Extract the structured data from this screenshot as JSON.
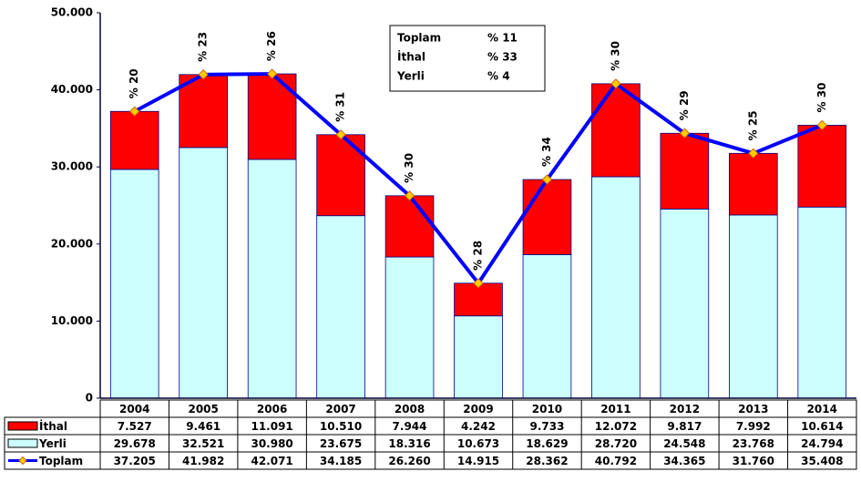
{
  "chart_data": {
    "type": "bar",
    "stacked": true,
    "categories": [
      "2004",
      "2005",
      "2006",
      "2007",
      "2008",
      "2009",
      "2010",
      "2011",
      "2012",
      "2013",
      "2014"
    ],
    "series": [
      {
        "name": "İthal",
        "color": "#ff0000",
        "type": "bar",
        "values": [
          7527,
          9461,
          11091,
          10510,
          7944,
          4242,
          9733,
          12072,
          9817,
          7992,
          10614
        ],
        "value_labels": [
          "7.527",
          "9.461",
          "11.091",
          "10.510",
          "7.944",
          "4.242",
          "9.733",
          "12.072",
          "9.817",
          "7.992",
          "10.614"
        ]
      },
      {
        "name": "Yerli",
        "color": "#ccffff",
        "type": "bar",
        "values": [
          29678,
          32521,
          30980,
          23675,
          18316,
          10673,
          18629,
          28720,
          24548,
          23768,
          24794
        ],
        "value_labels": [
          "29.678",
          "32.521",
          "30.980",
          "23.675",
          "18.316",
          "10.673",
          "18.629",
          "28.720",
          "24.548",
          "23.768",
          "24.794"
        ]
      },
      {
        "name": "Toplam",
        "color": "#0000ff",
        "marker_color": "#ffcc00",
        "type": "line",
        "values": [
          37205,
          41982,
          42071,
          34185,
          26260,
          14915,
          28362,
          40792,
          34365,
          31760,
          35408
        ],
        "value_labels": [
          "37.205",
          "41.982",
          "42.071",
          "34.185",
          "26.260",
          "14.915",
          "28.362",
          "40.792",
          "34.365",
          "31.760",
          "35.408"
        ]
      }
    ],
    "annotations": [
      "% 20",
      "% 23",
      "% 26",
      "% 31",
      "% 30",
      "% 28",
      "% 34",
      "% 30",
      "% 29",
      "% 25",
      "% 30"
    ],
    "annotation_color": "#ff6600",
    "summary": [
      {
        "name": "Toplam",
        "label": "% 11"
      },
      {
        "name": "İthal",
        "label": "% 33"
      },
      {
        "name": "Yerli",
        "label": "% 4"
      }
    ],
    "ylim": [
      0,
      50000
    ],
    "yticks": [
      0,
      {
        "value": 10000,
        "label": "10.000"
      },
      {
        "value": 20000,
        "label": "20.000"
      },
      {
        "value": 30000,
        "label": "30.000"
      },
      {
        "value": 40000,
        "label": "40.000"
      },
      {
        "value": 50000,
        "label": "50.000"
      }
    ]
  }
}
